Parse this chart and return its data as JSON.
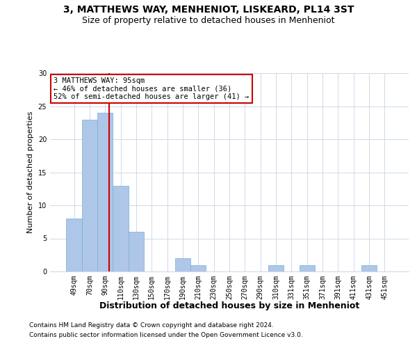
{
  "title1": "3, MATTHEWS WAY, MENHENIOT, LISKEARD, PL14 3ST",
  "title2": "Size of property relative to detached houses in Menheniot",
  "xlabel": "Distribution of detached houses by size in Menheniot",
  "ylabel": "Number of detached properties",
  "categories": [
    "49sqm",
    "70sqm",
    "90sqm",
    "110sqm",
    "130sqm",
    "150sqm",
    "170sqm",
    "190sqm",
    "210sqm",
    "230sqm",
    "250sqm",
    "270sqm",
    "290sqm",
    "310sqm",
    "331sqm",
    "351sqm",
    "371sqm",
    "391sqm",
    "411sqm",
    "431sqm",
    "451sqm"
  ],
  "values": [
    8,
    23,
    24,
    13,
    6,
    0,
    0,
    2,
    1,
    0,
    0,
    0,
    0,
    1,
    0,
    1,
    0,
    0,
    0,
    1,
    0
  ],
  "bar_color": "#aec6e8",
  "bar_edge_color": "#7aaed6",
  "grid_color": "#d0d8e8",
  "vline_color": "#cc0000",
  "annotation_text": "3 MATTHEWS WAY: 95sqm\n← 46% of detached houses are smaller (36)\n52% of semi-detached houses are larger (41) →",
  "annotation_box_color": "white",
  "annotation_box_edge": "#cc0000",
  "footnote1": "Contains HM Land Registry data © Crown copyright and database right 2024.",
  "footnote2": "Contains public sector information licensed under the Open Government Licence v3.0.",
  "ylim": [
    0,
    30
  ],
  "yticks": [
    0,
    5,
    10,
    15,
    20,
    25,
    30
  ],
  "title1_fontsize": 10,
  "title2_fontsize": 9,
  "ylabel_fontsize": 8,
  "xlabel_fontsize": 9,
  "tick_fontsize": 7,
  "footnote_fontsize": 6.5,
  "vline_pos": 2.25
}
